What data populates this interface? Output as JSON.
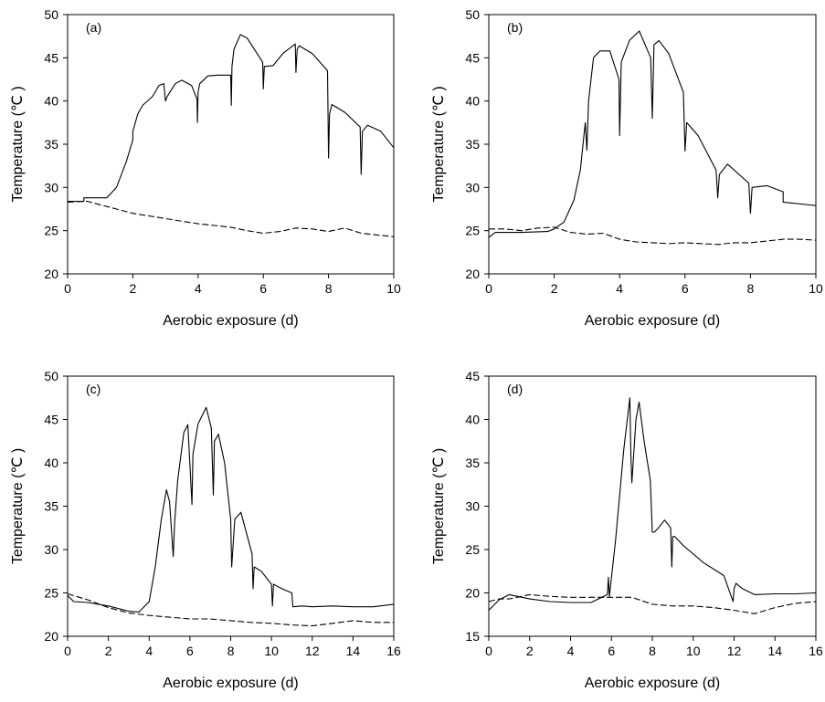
{
  "chart_data": [
    {
      "type": "line",
      "panel_label": "(a)",
      "xlabel": "Aerobic exposure (d)",
      "ylabel": "Temperature (℃ )",
      "xlim": [
        0,
        10
      ],
      "ylim": [
        20,
        50
      ],
      "xticks": [
        0,
        2,
        4,
        6,
        8,
        10
      ],
      "yticks": [
        20,
        25,
        30,
        35,
        40,
        45,
        50
      ],
      "grid": false,
      "series": [
        {
          "style": "solid",
          "x": [
            0,
            0.5,
            0.5,
            1,
            1.2,
            1.5,
            1.8,
            2.0,
            2.0,
            2.15,
            2.3,
            2.6,
            2.8,
            2.95,
            3.0,
            3.05,
            3.3,
            3.5,
            3.8,
            3.97,
            3.98,
            4.0,
            4.05,
            4.3,
            4.6,
            5.0,
            5.02,
            5.04,
            5.1,
            5.3,
            5.5,
            5.98,
            6.0,
            6.03,
            6.3,
            6.6,
            6.98,
            7.0,
            7.04,
            7.1,
            7.5,
            7.97,
            8.0,
            8.03,
            8.1,
            8.5,
            8.97,
            9.0,
            9.04,
            9.2,
            9.6,
            10
          ],
          "y": [
            28.4,
            28.4,
            28.8,
            28.8,
            28.8,
            30.0,
            33.0,
            35.5,
            36.5,
            38.5,
            39.5,
            40.5,
            41.8,
            42.0,
            40.0,
            40.5,
            42.0,
            42.4,
            41.8,
            40.2,
            37.5,
            41.0,
            42.0,
            42.9,
            43.0,
            43.0,
            39.5,
            44.0,
            46.0,
            47.7,
            47.3,
            44.5,
            41.4,
            44.0,
            44.1,
            45.5,
            46.6,
            43.3,
            46.0,
            46.4,
            45.5,
            43.5,
            33.4,
            38.5,
            39.6,
            38.7,
            37.0,
            31.5,
            36.5,
            37.2,
            36.5,
            34.6
          ]
        },
        {
          "style": "dashed",
          "x": [
            0,
            0.6,
            1.0,
            1.5,
            2.0,
            2.5,
            3.0,
            3.5,
            4.0,
            4.5,
            5.0,
            5.5,
            6.0,
            6.5,
            7.0,
            7.5,
            8.0,
            8.5,
            9.0,
            9.5,
            10
          ],
          "y": [
            28.3,
            28.4,
            28.0,
            27.5,
            27.0,
            26.7,
            26.4,
            26.1,
            25.8,
            25.6,
            25.4,
            25.0,
            24.7,
            24.9,
            25.3,
            25.2,
            24.9,
            25.3,
            24.7,
            24.5,
            24.3
          ]
        }
      ]
    },
    {
      "type": "line",
      "panel_label": "(b)",
      "xlabel": "Aerobic exposure (d)",
      "ylabel": "Temperature (℃ )",
      "xlim": [
        0,
        10
      ],
      "ylim": [
        20,
        50
      ],
      "xticks": [
        0,
        2,
        4,
        6,
        8,
        10
      ],
      "yticks": [
        20,
        25,
        30,
        35,
        40,
        45,
        50
      ],
      "grid": false,
      "series": [
        {
          "style": "solid",
          "x": [
            0,
            0.2,
            1.0,
            1.8,
            2.0,
            2.3,
            2.6,
            2.8,
            2.95,
            3.0,
            3.05,
            3.2,
            3.4,
            3.7,
            3.98,
            4.0,
            4.05,
            4.3,
            4.6,
            4.95,
            5.0,
            5.05,
            5.2,
            5.5,
            5.95,
            6.0,
            6.05,
            6.4,
            6.95,
            7.0,
            7.05,
            7.3,
            7.95,
            8.0,
            8.05,
            8.5,
            9.0,
            9.0,
            10
          ],
          "y": [
            24.2,
            24.8,
            24.8,
            24.9,
            25.2,
            26.0,
            28.5,
            32.0,
            37.5,
            34.3,
            40.0,
            45.0,
            45.8,
            45.8,
            42.5,
            36.0,
            44.5,
            47.0,
            48.1,
            45.0,
            38.0,
            46.5,
            47.0,
            45.5,
            41.0,
            34.2,
            37.5,
            36.0,
            32.0,
            28.8,
            31.5,
            32.7,
            30.5,
            27.0,
            30.0,
            30.2,
            29.5,
            28.3,
            27.9
          ]
        },
        {
          "style": "dashed",
          "x": [
            0,
            0.5,
            1.0,
            1.5,
            2.0,
            2.5,
            3.0,
            3.5,
            4.0,
            4.5,
            5.0,
            5.5,
            6.0,
            6.5,
            7.0,
            7.5,
            8.0,
            8.5,
            9.0,
            9.5,
            10
          ],
          "y": [
            25.2,
            25.2,
            25.0,
            25.3,
            25.4,
            24.8,
            24.6,
            24.7,
            24.0,
            23.7,
            23.6,
            23.5,
            23.6,
            23.5,
            23.4,
            23.6,
            23.6,
            23.8,
            24.0,
            24.0,
            23.9
          ]
        }
      ]
    },
    {
      "type": "line",
      "panel_label": "(c)",
      "xlabel": "Aerobic exposure (d)",
      "ylabel": "Temperature (℃ )",
      "xlim": [
        0,
        16
      ],
      "ylim": [
        20,
        50
      ],
      "xticks": [
        0,
        2,
        4,
        6,
        8,
        10,
        12,
        14,
        16
      ],
      "yticks": [
        20,
        25,
        30,
        35,
        40,
        45,
        50
      ],
      "grid": false,
      "series": [
        {
          "style": "solid",
          "x": [
            0,
            0.3,
            1.0,
            2.0,
            3.0,
            3.5,
            4.0,
            4.3,
            4.6,
            4.85,
            5.0,
            5.18,
            5.25,
            5.4,
            5.7,
            5.9,
            6.1,
            6.15,
            6.4,
            6.8,
            7.05,
            7.15,
            7.2,
            7.4,
            7.7,
            8.0,
            8.05,
            8.2,
            8.5,
            9.05,
            9.1,
            9.15,
            9.5,
            10.0,
            10.05,
            10.1,
            10.5,
            11.0,
            11.05,
            11.5,
            12,
            13,
            14,
            15,
            16
          ],
          "y": [
            24.7,
            24.0,
            23.9,
            23.5,
            22.9,
            22.8,
            24.0,
            28.0,
            33.5,
            36.9,
            35.5,
            29.2,
            33.0,
            38.0,
            43.5,
            44.4,
            35.2,
            41.0,
            44.5,
            46.4,
            44.0,
            36.3,
            42.5,
            43.3,
            40.0,
            33.5,
            28.0,
            33.5,
            34.3,
            29.5,
            25.5,
            28.0,
            27.5,
            26.0,
            23.5,
            26.0,
            25.5,
            25.0,
            23.4,
            23.5,
            23.4,
            23.5,
            23.4,
            23.4,
            23.7
          ]
        },
        {
          "style": "dashed",
          "x": [
            0,
            1,
            2,
            3,
            4,
            5,
            6,
            7,
            8,
            9,
            10,
            11,
            12,
            13,
            14,
            15,
            16
          ],
          "y": [
            24.9,
            24.2,
            23.3,
            22.7,
            22.4,
            22.2,
            22.0,
            22.0,
            21.8,
            21.6,
            21.5,
            21.3,
            21.2,
            21.5,
            21.8,
            21.6,
            21.6
          ]
        }
      ]
    },
    {
      "type": "line",
      "panel_label": "(d)",
      "xlabel": "Aerobic exposure (d)",
      "ylabel": "Temperature (℃ )",
      "xlim": [
        0,
        16
      ],
      "ylim": [
        15,
        45
      ],
      "xticks": [
        0,
        2,
        4,
        6,
        8,
        10,
        12,
        14,
        16
      ],
      "yticks": [
        15,
        20,
        25,
        30,
        35,
        40,
        45
      ],
      "grid": false,
      "series": [
        {
          "style": "solid",
          "x": [
            0,
            0.5,
            1.0,
            2.0,
            3.0,
            4.0,
            5.0,
            5.8,
            5.85,
            5.9,
            6.2,
            6.6,
            6.9,
            6.95,
            7.0,
            7.2,
            7.35,
            7.6,
            7.9,
            8.0,
            8.1,
            8.3,
            8.6,
            8.9,
            8.95,
            9.0,
            9.1,
            9.5,
            10.5,
            11.5,
            11.95,
            12.0,
            12.1,
            12.4,
            13.0,
            14.0,
            15.0,
            16
          ],
          "y": [
            18.0,
            19.2,
            19.8,
            19.3,
            19.0,
            18.9,
            18.9,
            19.8,
            21.8,
            19.6,
            26.0,
            36.5,
            42.5,
            36.0,
            32.7,
            40.0,
            42.0,
            37.5,
            33.0,
            27.0,
            27.0,
            27.5,
            28.4,
            27.5,
            23.0,
            26.5,
            26.5,
            25.5,
            23.5,
            22.0,
            19.0,
            20.5,
            21.1,
            20.5,
            19.8,
            19.9,
            19.9,
            20.0
          ]
        },
        {
          "style": "dashed",
          "x": [
            0,
            0.5,
            1,
            2,
            3,
            4,
            5,
            6,
            7,
            8,
            9,
            10,
            11,
            12,
            13,
            14,
            15,
            16
          ],
          "y": [
            19.0,
            19.3,
            19.3,
            19.8,
            19.6,
            19.5,
            19.5,
            19.5,
            19.5,
            18.7,
            18.5,
            18.5,
            18.3,
            18.0,
            17.6,
            18.3,
            18.8,
            19.0
          ]
        }
      ]
    }
  ]
}
